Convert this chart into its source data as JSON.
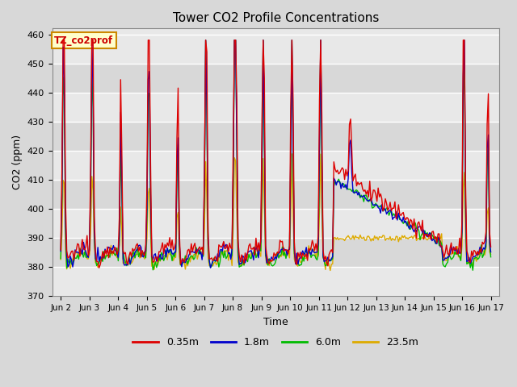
{
  "title": "Tower CO2 Profile Concentrations",
  "xlabel": "Time",
  "ylabel": "CO2 (ppm)",
  "ylim": [
    370,
    462
  ],
  "yticks": [
    370,
    380,
    390,
    400,
    410,
    420,
    430,
    440,
    450,
    460
  ],
  "fig_bg_color": "#d8d8d8",
  "plot_bg_color": "#e8e8e8",
  "band_colors": [
    "#e0e0e0",
    "#d0d0d0"
  ],
  "grid_color": "#ffffff",
  "annotation_text": "TZ_co2prof",
  "annotation_bg": "#ffffcc",
  "annotation_border": "#cc8800",
  "annotation_text_color": "#cc0000",
  "colors": {
    "0.35m": "#dd0000",
    "1.8m": "#0000cc",
    "6.0m": "#00bb00",
    "23.5m": "#ddaa00"
  },
  "linewidth": 1.0,
  "legend_labels": [
    "0.35m",
    "1.8m",
    "6.0m",
    "23.5m"
  ],
  "xtick_labels": [
    "Jun 2",
    "Jun 3",
    "Jun 4",
    "Jun 5",
    "Jun 6",
    "Jun 7",
    "Jun 8",
    "Jun 9",
    "Jun 10",
    "Jun 11",
    "Jun 12",
    "Jun 13",
    "Jun 14",
    "Jun 15",
    "Jun 16",
    "Jun 17"
  ],
  "figsize": [
    6.4,
    4.8
  ],
  "dpi": 100
}
